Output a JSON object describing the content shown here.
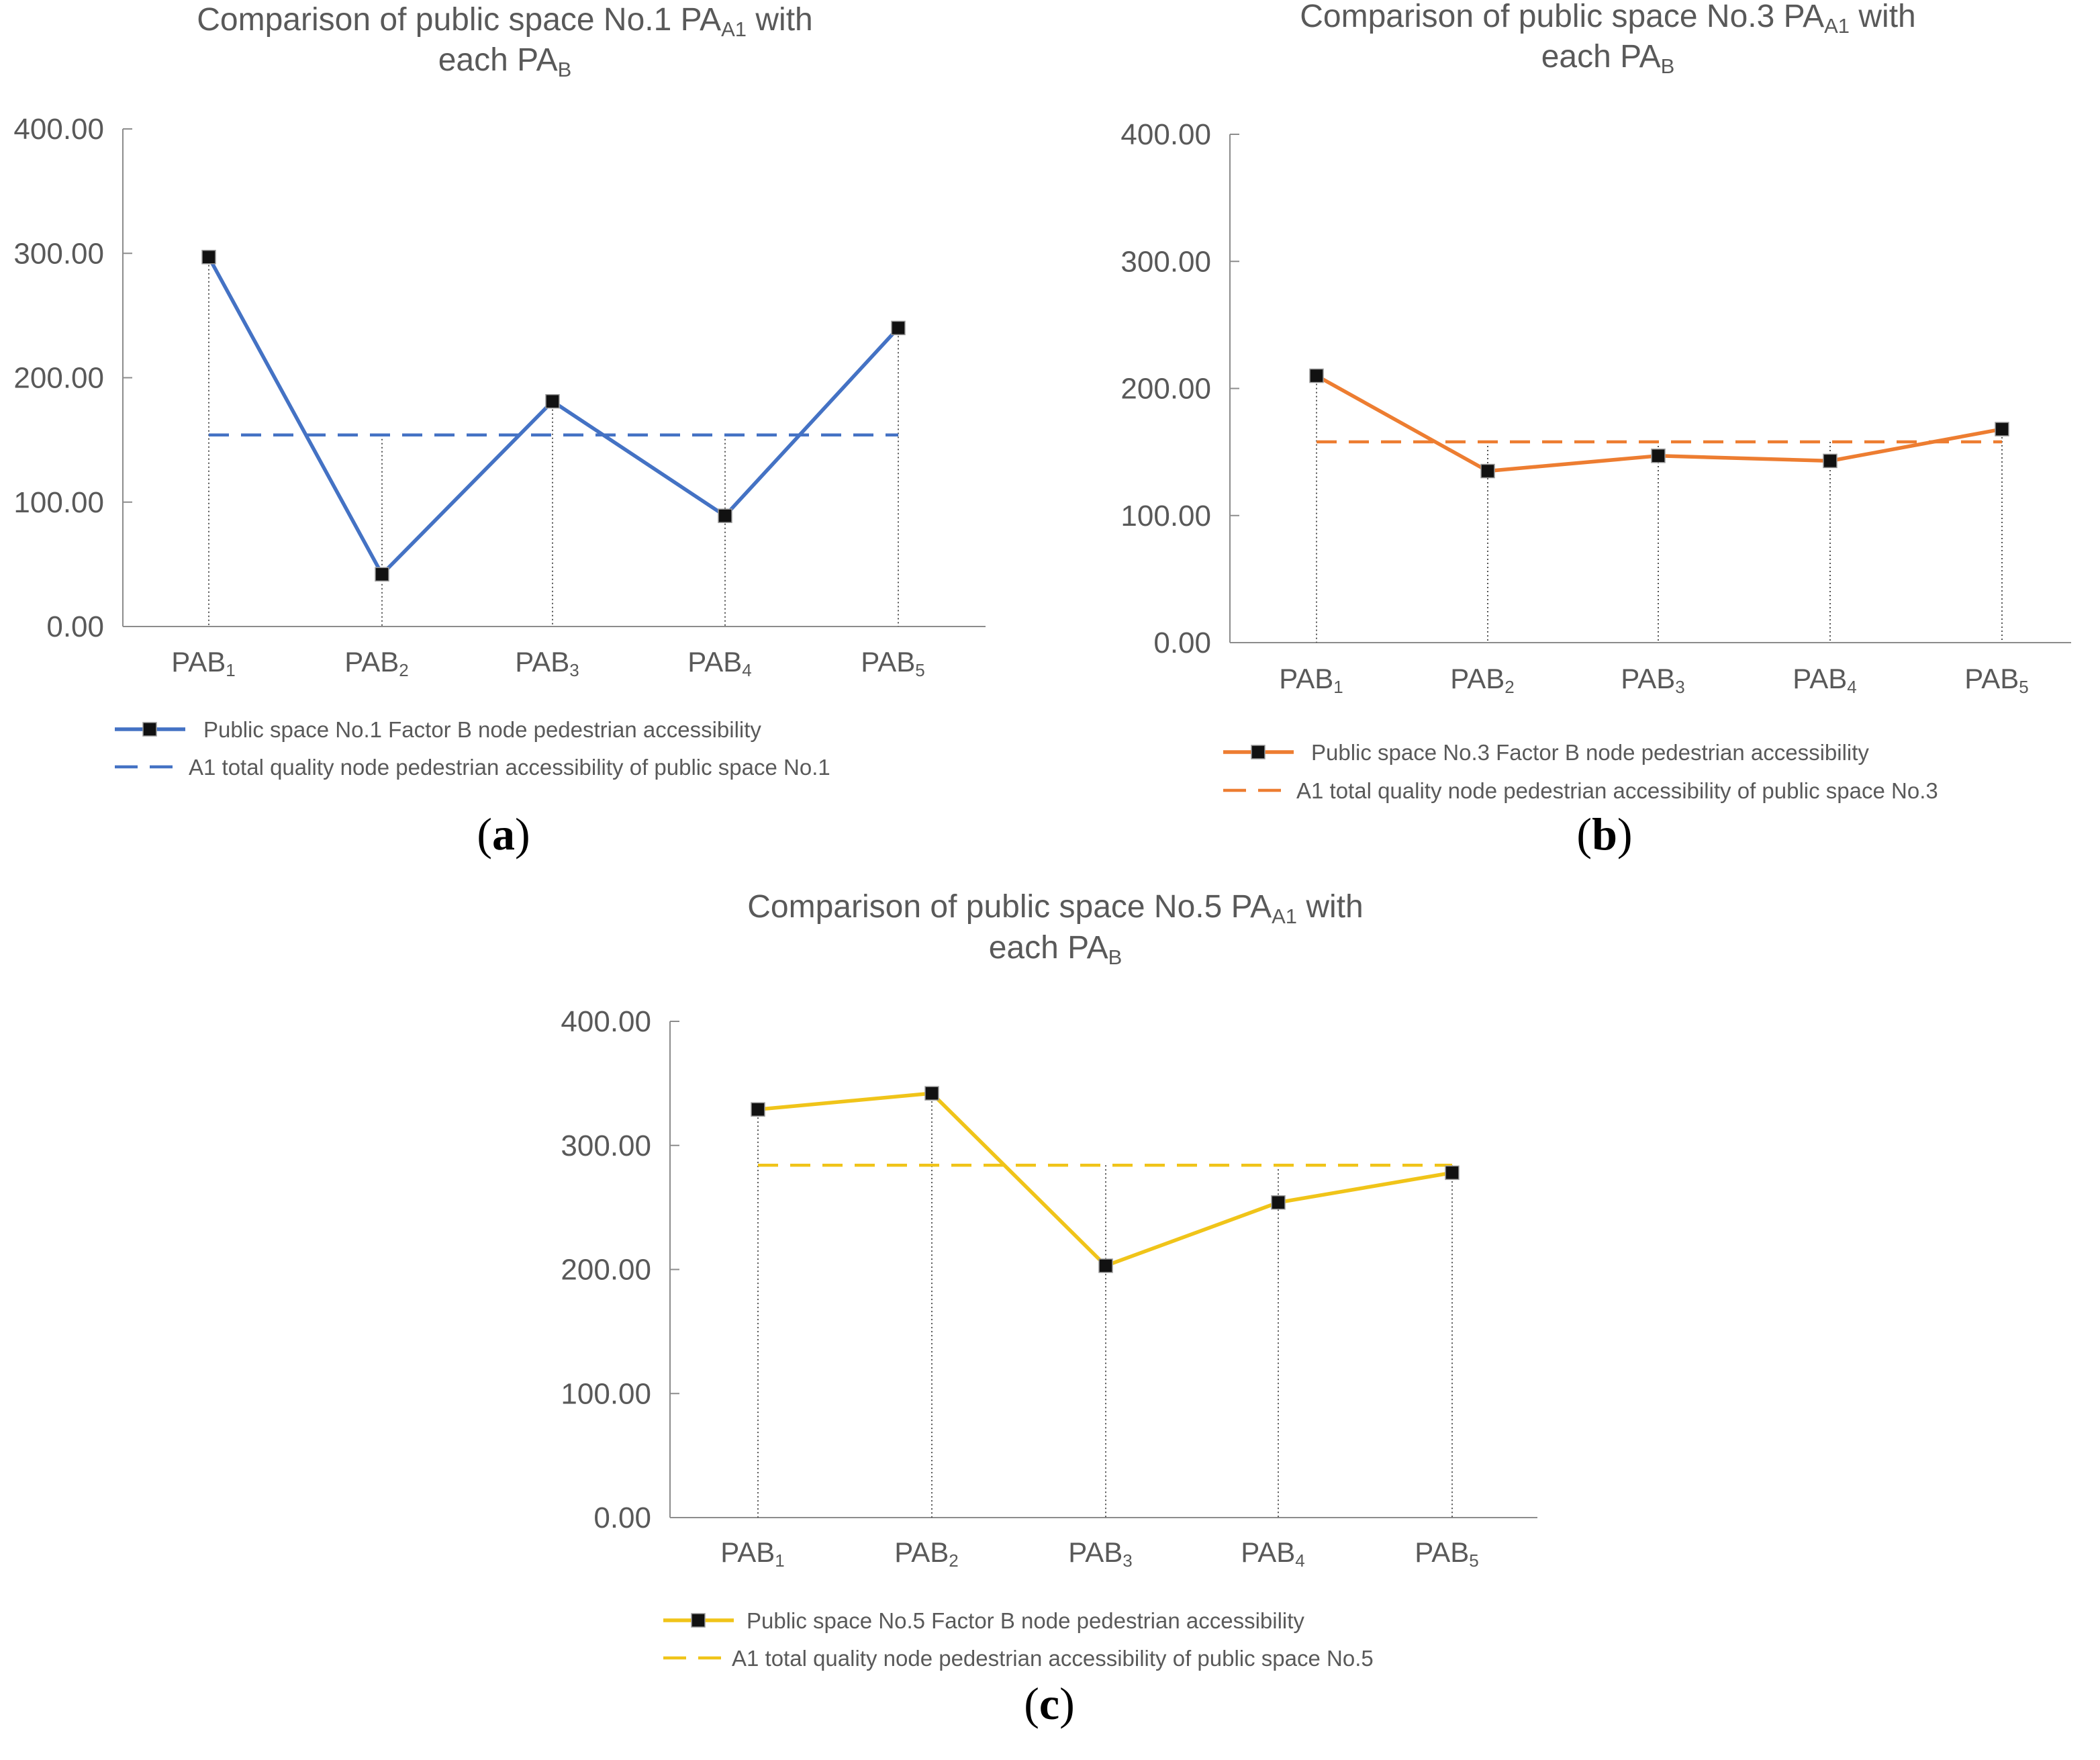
{
  "figure": {
    "panels": [
      {
        "id": "a",
        "label_open": "(",
        "label_letter": "a",
        "label_close": ")"
      },
      {
        "id": "b",
        "label_open": "(",
        "label_letter": "b",
        "label_close": ")"
      },
      {
        "id": "c",
        "label_open": "(",
        "label_letter": "c",
        "label_close": ")"
      }
    ]
  },
  "chart_data": [
    {
      "id": "a",
      "type": "line",
      "title_line1_prefix": "Comparison of public space No.1 PA",
      "title_line1_sub": "A1",
      "title_line1_suffix": " with",
      "title_line2_prefix": "each PA",
      "title_line2_sub": "B",
      "categories": [
        {
          "base": "PA",
          "letter": "B",
          "sub": "1"
        },
        {
          "base": "PA",
          "letter": "B",
          "sub": "2"
        },
        {
          "base": "PA",
          "letter": "B",
          "sub": "3"
        },
        {
          "base": "PA",
          "letter": "B",
          "sub": "4"
        },
        {
          "base": "PA",
          "letter": "B",
          "sub": "5"
        }
      ],
      "series": [
        {
          "name": "Public space No.1 Factor B node pedestrian accessibility",
          "values": [
            297,
            42,
            181,
            89,
            240
          ],
          "style": "solid-marker"
        },
        {
          "name": "A1 total quality node pedestrian accessibility of public space No.1",
          "values": [
            154,
            154,
            154,
            154,
            154
          ],
          "style": "dashed"
        }
      ],
      "color": "#4472c4",
      "ylim": [
        0,
        400
      ],
      "yticks": [
        0,
        100,
        200,
        300,
        400
      ],
      "ytick_labels": [
        "0.00",
        "100.00",
        "200.00",
        "300.00",
        "400.00"
      ]
    },
    {
      "id": "b",
      "type": "line",
      "title_line1_prefix": "Comparison of public space No.3 PA",
      "title_line1_sub": "A1",
      "title_line1_suffix": " with",
      "title_line2_prefix": "each PA",
      "title_line2_sub": "B",
      "categories": [
        {
          "base": "PA",
          "letter": "B",
          "sub": "1"
        },
        {
          "base": "PA",
          "letter": "B",
          "sub": "2"
        },
        {
          "base": "PA",
          "letter": "B",
          "sub": "3"
        },
        {
          "base": "PA",
          "letter": "B",
          "sub": "4"
        },
        {
          "base": "PA",
          "letter": "B",
          "sub": "5"
        }
      ],
      "series": [
        {
          "name": "Public space No.3 Factor B node pedestrian accessibility",
          "values": [
            210,
            135,
            147,
            143,
            168
          ],
          "style": "solid-marker"
        },
        {
          "name": "A1 total quality node pedestrian accessibility of public space No.3",
          "values": [
            158,
            158,
            158,
            158,
            158
          ],
          "style": "dashed"
        }
      ],
      "color": "#ed7d31",
      "ylim": [
        0,
        400
      ],
      "yticks": [
        0,
        100,
        200,
        300,
        400
      ],
      "ytick_labels": [
        "0.00",
        "100.00",
        "200.00",
        "300.00",
        "400.00"
      ]
    },
    {
      "id": "c",
      "type": "line",
      "title_line1_prefix": "Comparison of public space No.5 PA",
      "title_line1_sub": "A1",
      "title_line1_suffix": " with",
      "title_line2_prefix": "each PA",
      "title_line2_sub": "B",
      "categories": [
        {
          "base": "PA",
          "letter": "B",
          "sub": "1"
        },
        {
          "base": "PA",
          "letter": "B",
          "sub": "2"
        },
        {
          "base": "PA",
          "letter": "B",
          "sub": "3"
        },
        {
          "base": "PA",
          "letter": "B",
          "sub": "4"
        },
        {
          "base": "PA",
          "letter": "B",
          "sub": "5"
        }
      ],
      "series": [
        {
          "name": "Public space No.5 Factor B node pedestrian accessibility",
          "values": [
            329,
            342,
            203,
            254,
            278
          ],
          "style": "solid-marker"
        },
        {
          "name": "A1 total quality node pedestrian accessibility of public space No.5",
          "values": [
            284,
            284,
            284,
            284,
            284
          ],
          "style": "dashed"
        }
      ],
      "color": "#f0c419",
      "ylim": [
        0,
        400
      ],
      "yticks": [
        0,
        100,
        200,
        300,
        400
      ],
      "ytick_labels": [
        "0.00",
        "100.00",
        "200.00",
        "300.00",
        "400.00"
      ]
    }
  ]
}
